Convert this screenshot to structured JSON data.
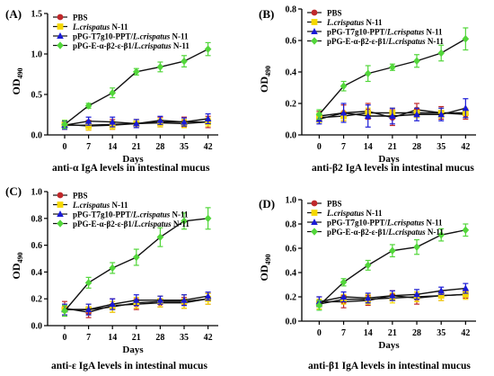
{
  "chart_data": [
    {
      "type": "line",
      "panel_label": "(A)",
      "title": "anti-α IgA levels in intestinal mucus",
      "xlabel": "Days",
      "ylabel_main": "OD",
      "ylabel_sub": "490",
      "x": [
        0,
        7,
        14,
        21,
        28,
        35,
        42
      ],
      "xlim": [
        -5,
        45
      ],
      "ylim": [
        0,
        1.5
      ],
      "yticks": [
        0.0,
        0.5,
        1.0,
        1.5
      ],
      "ytick_labels": [
        "0.0",
        "0.5",
        "1.0",
        "1.5"
      ],
      "legend": {
        "position": "top-left"
      },
      "series": [
        {
          "name": "PBS",
          "legend_parts": [
            {
              "t": "PBS",
              "i": false
            }
          ],
          "color": "#c0282a",
          "marker": "circle",
          "values": [
            0.12,
            0.12,
            0.13,
            0.14,
            0.16,
            0.16,
            0.16
          ],
          "errors": [
            0.05,
            0.06,
            0.06,
            0.05,
            0.06,
            0.06,
            0.07
          ]
        },
        {
          "name": "L.crispatus N-11",
          "legend_parts": [
            {
              "t": "L.crispatus",
              "i": true
            },
            {
              "t": " N-11",
              "i": false
            }
          ],
          "color": "#f5d800",
          "marker": "square",
          "values": [
            0.13,
            0.11,
            0.12,
            0.14,
            0.15,
            0.14,
            0.16
          ],
          "errors": [
            0.05,
            0.05,
            0.05,
            0.05,
            0.05,
            0.05,
            0.05
          ]
        },
        {
          "name": "pPG-T7g10-PPT/L.crispatus N-11",
          "legend_parts": [
            {
              "t": "pPG-T7g10-PPT/",
              "i": false
            },
            {
              "t": "L.crispatus",
              "i": true
            },
            {
              "t": " N-11",
              "i": false
            }
          ],
          "color": "#1a1ad6",
          "marker": "triangle",
          "values": [
            0.12,
            0.17,
            0.16,
            0.14,
            0.18,
            0.16,
            0.2
          ],
          "errors": [
            0.05,
            0.05,
            0.06,
            0.05,
            0.05,
            0.05,
            0.06
          ]
        },
        {
          "name": "pPG-E-α-β2-ε-β1/L.crispatus N-11",
          "legend_parts": [
            {
              "t": "pPG-E-α-β2-ε-β1/",
              "i": false
            },
            {
              "t": "L.crispatus",
              "i": true
            },
            {
              "t": " N-11",
              "i": false
            }
          ],
          "color": "#52d63a",
          "marker": "diamond",
          "values": [
            0.13,
            0.36,
            0.52,
            0.78,
            0.84,
            0.91,
            1.06
          ],
          "errors": [
            0.05,
            0.03,
            0.06,
            0.04,
            0.06,
            0.07,
            0.08
          ]
        }
      ]
    },
    {
      "type": "line",
      "panel_label": "(B)",
      "title": "anti-β2 IgA levels in intestinal mucus",
      "xlabel": "Days",
      "ylabel_main": "OD",
      "ylabel_sub": "490",
      "x": [
        0,
        7,
        14,
        21,
        28,
        35,
        42
      ],
      "xlim": [
        -5,
        45
      ],
      "ylim": [
        0,
        0.8
      ],
      "yticks": [
        0.0,
        0.2,
        0.4,
        0.6,
        0.8
      ],
      "ytick_labels": [
        "0.0",
        "0.2",
        "0.4",
        "0.6",
        "0.8"
      ],
      "legend": {
        "position": "top-left"
      },
      "series": [
        {
          "name": "PBS",
          "legend_parts": [
            {
              "t": "PBS",
              "i": false
            }
          ],
          "color": "#c0282a",
          "marker": "circle",
          "values": [
            0.12,
            0.14,
            0.15,
            0.11,
            0.16,
            0.14,
            0.13
          ],
          "errors": [
            0.03,
            0.05,
            0.05,
            0.05,
            0.04,
            0.04,
            0.03
          ]
        },
        {
          "name": "L.crispatus N-11",
          "legend_parts": [
            {
              "t": "L.crispatus",
              "i": true
            },
            {
              "t": " N-11",
              "i": false
            }
          ],
          "color": "#f5d800",
          "marker": "square",
          "values": [
            0.11,
            0.12,
            0.14,
            0.14,
            0.14,
            0.14,
            0.14
          ],
          "errors": [
            0.03,
            0.03,
            0.03,
            0.03,
            0.03,
            0.03,
            0.03
          ]
        },
        {
          "name": "pPG-T7g10-PPT/L.crispatus N-11",
          "legend_parts": [
            {
              "t": "pPG-T7g10-PPT/",
              "i": false
            },
            {
              "t": "L.crispatus",
              "i": true
            },
            {
              "t": " N-11",
              "i": false
            }
          ],
          "color": "#1a1ad6",
          "marker": "triangle",
          "values": [
            0.1,
            0.14,
            0.12,
            0.12,
            0.13,
            0.13,
            0.17
          ],
          "errors": [
            0.03,
            0.06,
            0.07,
            0.05,
            0.04,
            0.04,
            0.06
          ]
        },
        {
          "name": "pPG-E-α-β2-ε-β1/L.crispatus N-11",
          "legend_parts": [
            {
              "t": "pPG-E-α-β2-ε-β1/",
              "i": false
            },
            {
              "t": "L.crispatus",
              "i": true
            },
            {
              "t": " N-11",
              "i": false
            }
          ],
          "color": "#52d63a",
          "marker": "diamond",
          "values": [
            0.13,
            0.31,
            0.39,
            0.43,
            0.47,
            0.52,
            0.61
          ],
          "errors": [
            0.03,
            0.03,
            0.05,
            0.02,
            0.04,
            0.05,
            0.07
          ]
        }
      ]
    },
    {
      "type": "line",
      "panel_label": "(C)",
      "title": "anti-ε IgA levels in intestinal mucus",
      "xlabel": "Days",
      "ylabel_main": "OD",
      "ylabel_sub": "490",
      "x": [
        0,
        7,
        14,
        21,
        28,
        35,
        42
      ],
      "xlim": [
        -5,
        45
      ],
      "ylim": [
        0,
        1.0
      ],
      "yticks": [
        0.0,
        0.2,
        0.4,
        0.6,
        0.8,
        1.0
      ],
      "ytick_labels": [
        "0.0",
        "0.2",
        "0.4",
        "0.6",
        "0.8",
        "1.0"
      ],
      "legend": {
        "position": "top-left"
      },
      "series": [
        {
          "name": "PBS",
          "legend_parts": [
            {
              "t": "PBS",
              "i": false
            }
          ],
          "color": "#c0282a",
          "marker": "circle",
          "values": [
            0.13,
            0.1,
            0.15,
            0.16,
            0.17,
            0.17,
            0.2
          ],
          "errors": [
            0.05,
            0.04,
            0.05,
            0.04,
            0.03,
            0.04,
            0.04
          ]
        },
        {
          "name": "L.crispatus N-11",
          "legend_parts": [
            {
              "t": "L.crispatus",
              "i": true
            },
            {
              "t": " N-11",
              "i": false
            }
          ],
          "color": "#f5d800",
          "marker": "square",
          "values": [
            0.12,
            0.12,
            0.14,
            0.17,
            0.18,
            0.18,
            0.2
          ],
          "errors": [
            0.04,
            0.04,
            0.04,
            0.04,
            0.04,
            0.05,
            0.04
          ]
        },
        {
          "name": "pPG-T7g10-PPT/L.crispatus N-11",
          "legend_parts": [
            {
              "t": "pPG-T7g10-PPT/",
              "i": false
            },
            {
              "t": "L.crispatus",
              "i": true
            },
            {
              "t": " N-11",
              "i": false
            }
          ],
          "color": "#1a1ad6",
          "marker": "triangle",
          "values": [
            0.12,
            0.12,
            0.16,
            0.19,
            0.19,
            0.19,
            0.22
          ],
          "errors": [
            0.04,
            0.04,
            0.04,
            0.04,
            0.03,
            0.04,
            0.03
          ]
        },
        {
          "name": "pPG-E-α-β2-ε-β1/L.crispatus N-11",
          "legend_parts": [
            {
              "t": "pPG-E-α-β2-ε-β1/",
              "i": false
            },
            {
              "t": "L.crispatus",
              "i": true
            },
            {
              "t": " N-11",
              "i": false
            }
          ],
          "color": "#52d63a",
          "marker": "diamond",
          "values": [
            0.11,
            0.32,
            0.43,
            0.51,
            0.66,
            0.78,
            0.8
          ],
          "errors": [
            0.04,
            0.04,
            0.04,
            0.06,
            0.07,
            0.06,
            0.08
          ]
        }
      ]
    },
    {
      "type": "line",
      "panel_label": "(D)",
      "title": "anti-β1 IgA levels in intestinal mucus",
      "xlabel": "Days",
      "ylabel_main": "OD",
      "ylabel_sub": "490",
      "x": [
        0,
        7,
        14,
        21,
        28,
        35,
        42
      ],
      "xlim": [
        -5,
        45
      ],
      "ylim": [
        0,
        1.0
      ],
      "yticks": [
        0.0,
        0.2,
        0.4,
        0.6,
        0.8,
        1.0
      ],
      "ytick_labels": [
        "0.0",
        "0.2",
        "0.4",
        "0.6",
        "0.8",
        "1.0"
      ],
      "legend": {
        "position": "top-left"
      },
      "series": [
        {
          "name": "PBS",
          "legend_parts": [
            {
              "t": "PBS",
              "i": false
            }
          ],
          "color": "#c0282a",
          "marker": "circle",
          "values": [
            0.16,
            0.16,
            0.17,
            0.21,
            0.19,
            0.21,
            0.22
          ],
          "errors": [
            0.04,
            0.05,
            0.04,
            0.04,
            0.05,
            0.04,
            0.03
          ]
        },
        {
          "name": "L.crispatus N-11",
          "legend_parts": [
            {
              "t": "L.crispatus",
              "i": true
            },
            {
              "t": " N-11",
              "i": false
            }
          ],
          "color": "#f5d800",
          "marker": "square",
          "values": [
            0.14,
            0.18,
            0.18,
            0.19,
            0.2,
            0.21,
            0.22
          ],
          "errors": [
            0.04,
            0.04,
            0.04,
            0.04,
            0.04,
            0.04,
            0.04
          ]
        },
        {
          "name": "pPG-T7g10-PPT/L.crispatus N-11",
          "legend_parts": [
            {
              "t": "pPG-T7g10-PPT/",
              "i": false
            },
            {
              "t": "L.crispatus",
              "i": true
            },
            {
              "t": " N-11",
              "i": false
            }
          ],
          "color": "#1a1ad6",
          "marker": "triangle",
          "values": [
            0.16,
            0.2,
            0.19,
            0.21,
            0.22,
            0.25,
            0.27
          ],
          "errors": [
            0.04,
            0.04,
            0.04,
            0.04,
            0.04,
            0.03,
            0.04
          ]
        },
        {
          "name": "pPG-E-α-β2-ε-β1/L.crispatus N-11",
          "legend_parts": [
            {
              "t": "pPG-E-α-β2-ε-β1/",
              "i": false
            },
            {
              "t": "L.crispatus",
              "i": true
            },
            {
              "t": " N-11",
              "i": false
            }
          ],
          "color": "#52d63a",
          "marker": "diamond",
          "values": [
            0.13,
            0.32,
            0.46,
            0.58,
            0.61,
            0.71,
            0.75
          ],
          "errors": [
            0.04,
            0.03,
            0.04,
            0.05,
            0.06,
            0.05,
            0.05
          ]
        }
      ]
    }
  ]
}
